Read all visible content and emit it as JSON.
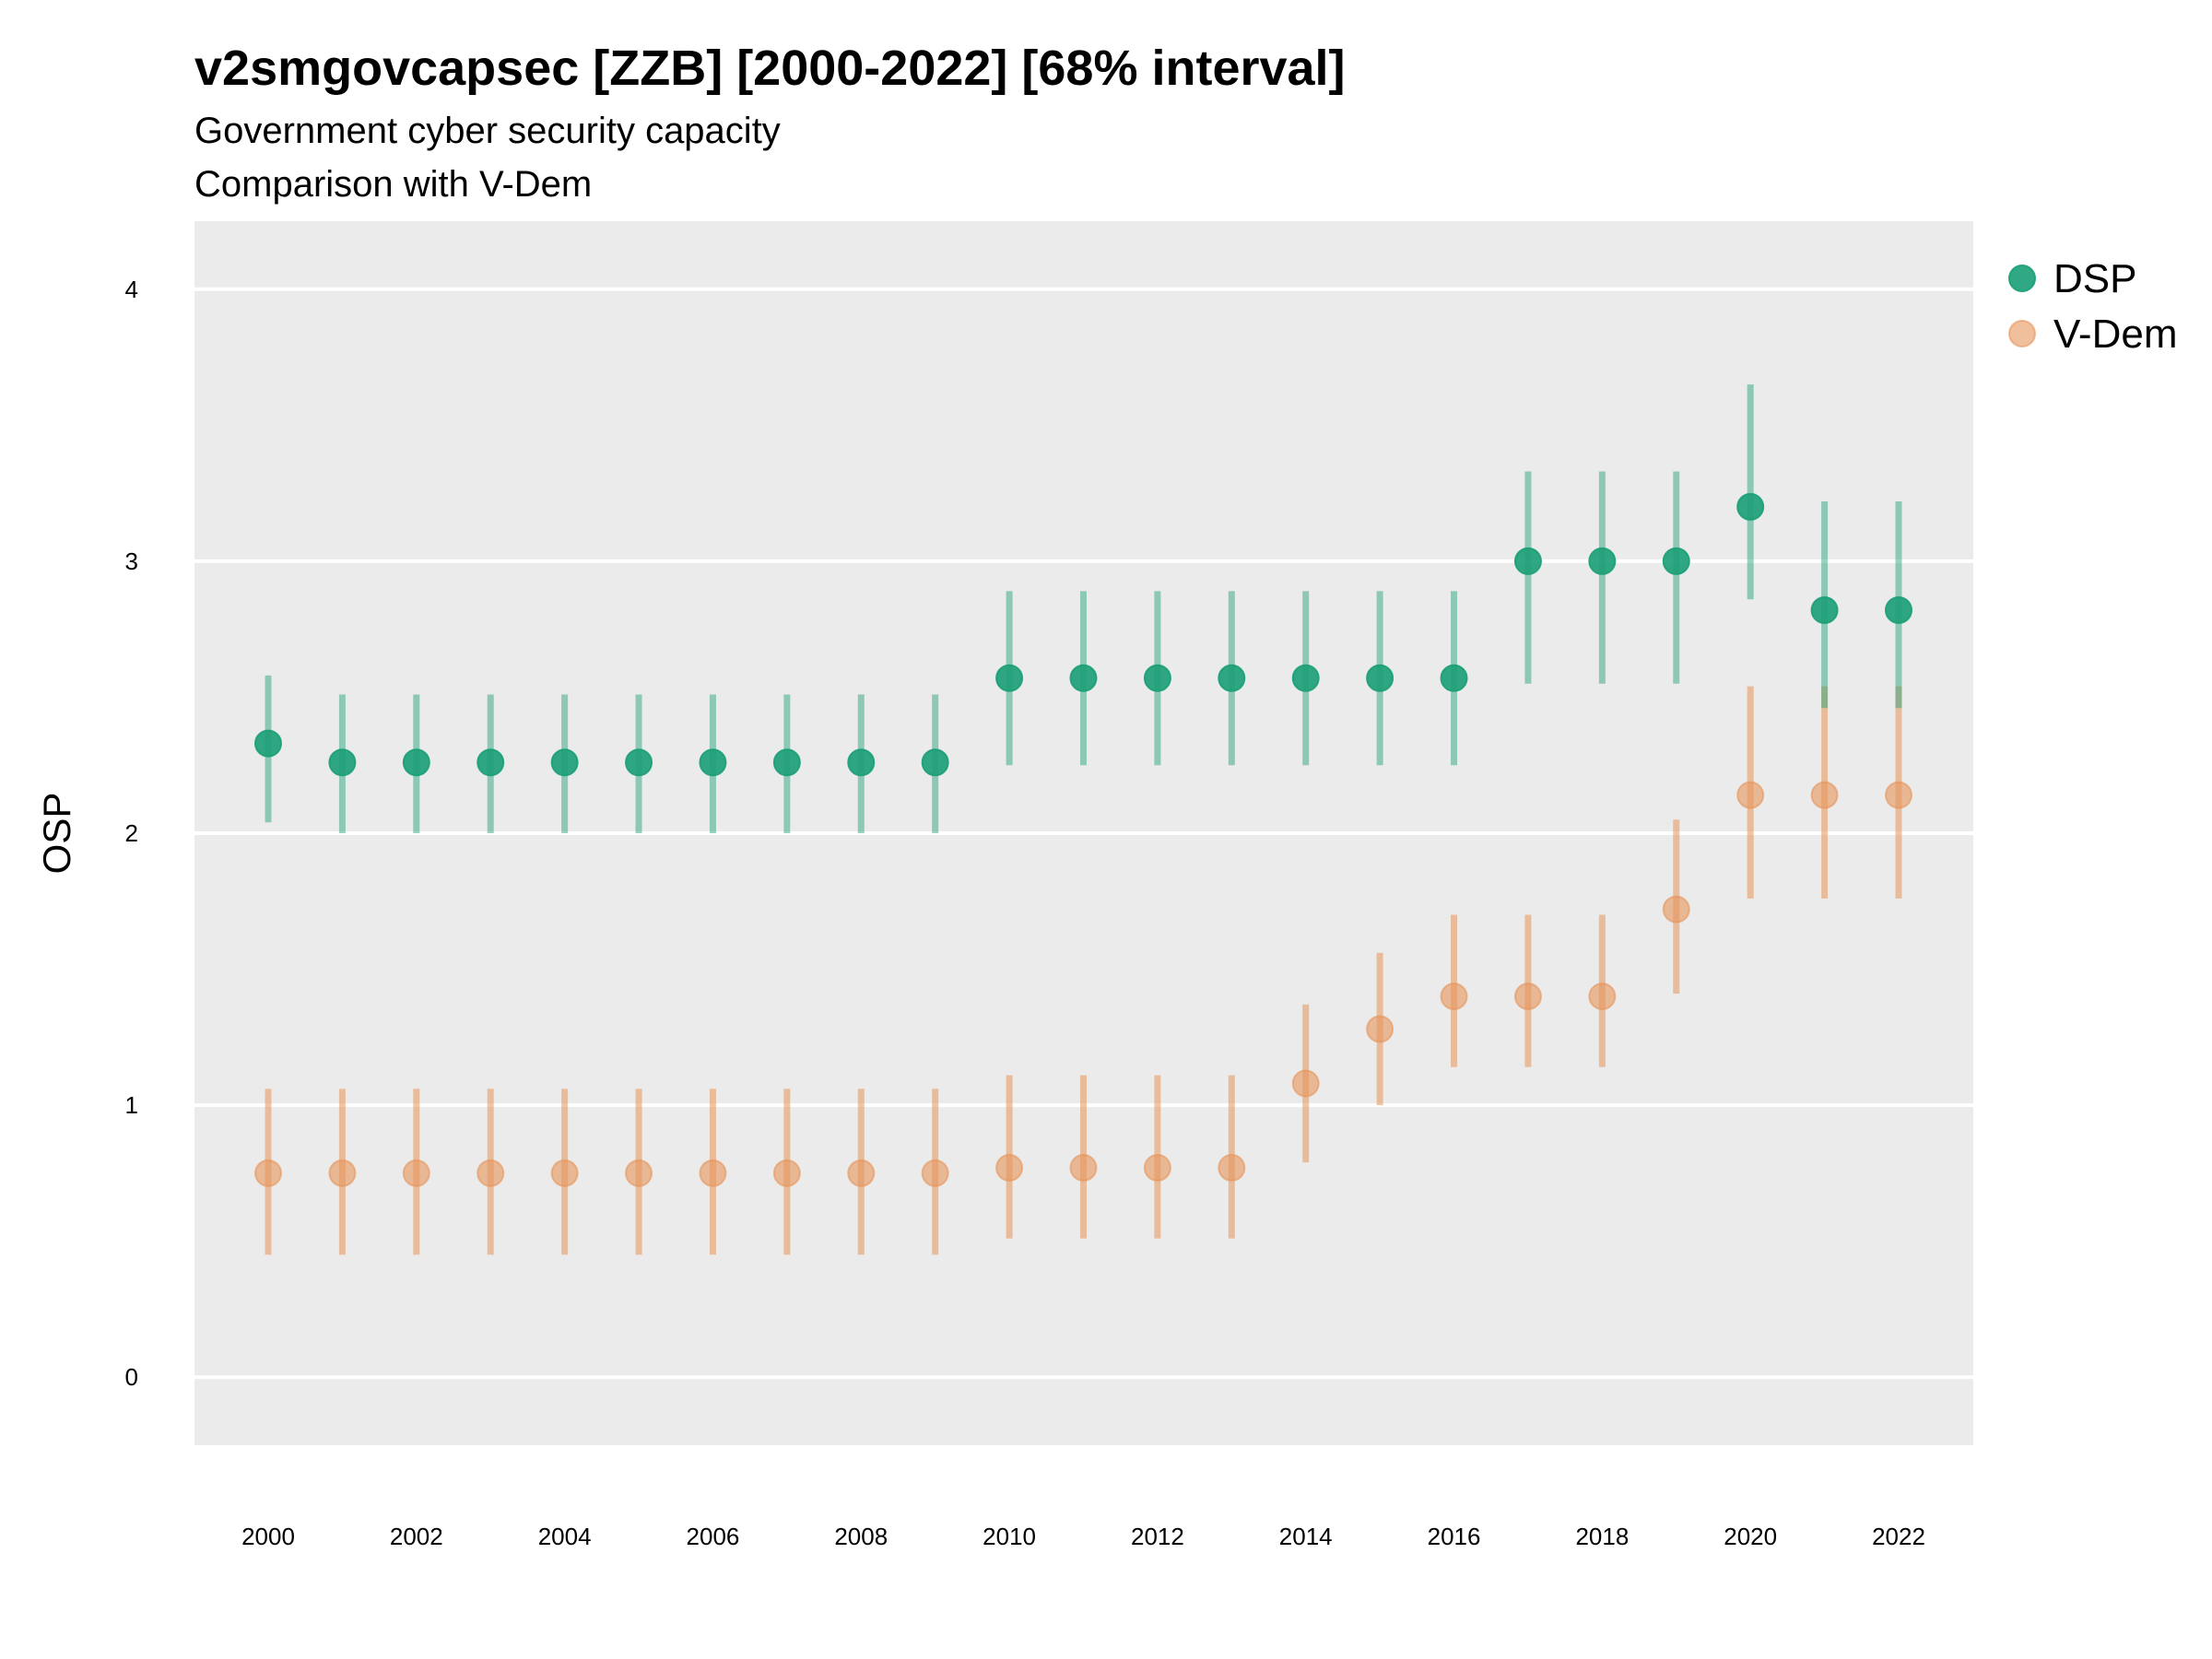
{
  "title": "v2smgovcapsec [ZZB] [2000-2022] [68% interval]",
  "subtitle_line1": "Government cyber security capacity",
  "subtitle_line2": "Comparison with V-Dem",
  "colors": {
    "panel": "#ebebeb",
    "grid": "#ffffff",
    "dsp": "#1b9e77",
    "vdem": "#e6955a"
  },
  "chart_data": {
    "type": "scatter",
    "title": "v2smgovcapsec [ZZB] [2000-2022] [68% interval]",
    "subtitle": "Government cyber security capacity / Comparison with V-Dem",
    "xlabel": "",
    "ylabel": "OSP",
    "ylim": [
      -0.25,
      4.25
    ],
    "yticks": [
      0,
      1,
      2,
      3,
      4
    ],
    "xticks": [
      2000,
      2002,
      2004,
      2006,
      2008,
      2010,
      2012,
      2014,
      2016,
      2018,
      2020,
      2022
    ],
    "grid": true,
    "legend_position": "right",
    "x": [
      2000,
      2001,
      2002,
      2003,
      2004,
      2005,
      2006,
      2007,
      2008,
      2009,
      2010,
      2011,
      2012,
      2013,
      2014,
      2015,
      2016,
      2017,
      2018,
      2019,
      2020,
      2021,
      2022
    ],
    "series": [
      {
        "name": "DSP",
        "color": "#1b9e77",
        "values": [
          2.33,
          2.26,
          2.26,
          2.26,
          2.26,
          2.26,
          2.26,
          2.26,
          2.26,
          2.26,
          2.57,
          2.57,
          2.57,
          2.57,
          2.57,
          2.57,
          2.57,
          3.0,
          3.0,
          3.0,
          3.2,
          2.82,
          2.82
        ],
        "lower": [
          2.04,
          2.0,
          2.0,
          2.0,
          2.0,
          2.0,
          2.0,
          2.0,
          2.0,
          2.0,
          2.25,
          2.25,
          2.25,
          2.25,
          2.25,
          2.25,
          2.25,
          2.55,
          2.55,
          2.55,
          2.86,
          2.46,
          2.46
        ],
        "upper": [
          2.58,
          2.51,
          2.51,
          2.51,
          2.51,
          2.51,
          2.51,
          2.51,
          2.51,
          2.51,
          2.89,
          2.89,
          2.89,
          2.89,
          2.89,
          2.89,
          2.89,
          3.33,
          3.33,
          3.33,
          3.65,
          3.22,
          3.22
        ]
      },
      {
        "name": "V-Dem",
        "color": "#e6955a",
        "values": [
          0.75,
          0.75,
          0.75,
          0.75,
          0.75,
          0.75,
          0.75,
          0.75,
          0.75,
          0.75,
          0.77,
          0.77,
          0.77,
          0.77,
          1.08,
          1.28,
          1.4,
          1.4,
          1.4,
          1.72,
          2.14,
          2.14,
          2.14
        ],
        "lower": [
          0.45,
          0.45,
          0.45,
          0.45,
          0.45,
          0.45,
          0.45,
          0.45,
          0.45,
          0.45,
          0.51,
          0.51,
          0.51,
          0.51,
          0.79,
          1.0,
          1.14,
          1.14,
          1.14,
          1.41,
          1.76,
          1.76,
          1.76
        ],
        "upper": [
          1.06,
          1.06,
          1.06,
          1.06,
          1.06,
          1.06,
          1.06,
          1.06,
          1.06,
          1.06,
          1.11,
          1.11,
          1.11,
          1.11,
          1.37,
          1.56,
          1.7,
          1.7,
          1.7,
          2.05,
          2.54,
          2.54,
          2.54
        ]
      }
    ]
  }
}
